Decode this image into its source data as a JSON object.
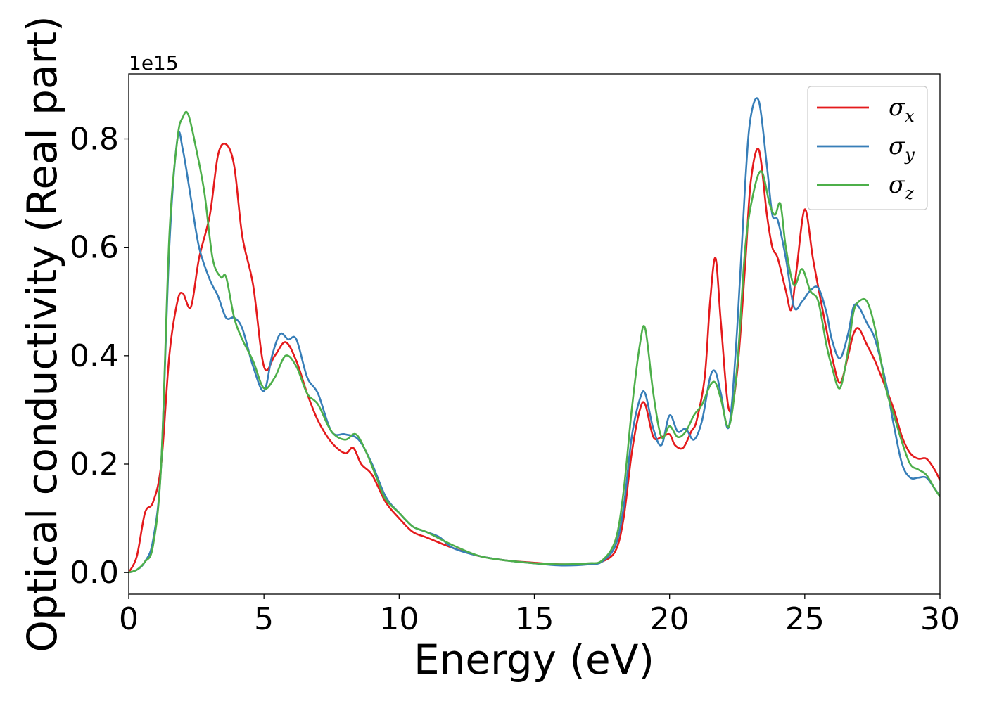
{
  "chart_data": {
    "type": "line",
    "title": "",
    "xlabel": "Energy (eV)",
    "ylabel": "Optical conductivity (Real part)",
    "y_offset_text": "1e15",
    "xlim": [
      0,
      30
    ],
    "ylim": [
      -0.04,
      0.92
    ],
    "xticks": [
      0,
      5,
      10,
      15,
      20,
      25,
      30
    ],
    "xtick_labels": [
      "0",
      "5",
      "10",
      "15",
      "20",
      "25",
      "30"
    ],
    "yticks": [
      0.0,
      0.2,
      0.4,
      0.6,
      0.8
    ],
    "ytick_labels": [
      "0.0",
      "0.2",
      "0.4",
      "0.6",
      "0.8"
    ],
    "grid": false,
    "legend_position": "top-right",
    "series": [
      {
        "name": "σx",
        "symbol": "σ",
        "subscript": "x",
        "color": "#e41a1c",
        "x": [
          0,
          0.3,
          0.6,
          0.9,
          1.2,
          1.5,
          1.8,
          2.0,
          2.3,
          2.6,
          3.0,
          3.3,
          3.6,
          3.9,
          4.2,
          4.6,
          5.0,
          5.4,
          5.8,
          6.2,
          6.6,
          7.0,
          7.5,
          8.0,
          8.3,
          8.6,
          9.0,
          9.5,
          10.0,
          10.5,
          11.0,
          12.0,
          13.0,
          14.0,
          15.0,
          16.0,
          17.0,
          17.5,
          18.0,
          18.3,
          18.6,
          18.9,
          19.1,
          19.4,
          19.7,
          20.0,
          20.2,
          20.5,
          20.8,
          21.0,
          21.3,
          21.5,
          21.7,
          21.9,
          22.2,
          22.5,
          22.8,
          23.0,
          23.3,
          23.6,
          23.8,
          24.0,
          24.3,
          24.5,
          24.7,
          25.0,
          25.3,
          25.6,
          26.0,
          26.3,
          26.6,
          26.8,
          27.0,
          27.3,
          27.6,
          28.0,
          28.3,
          28.6,
          28.9,
          29.2,
          29.5,
          29.8,
          30.0
        ],
        "y": [
          0.0,
          0.03,
          0.11,
          0.13,
          0.2,
          0.4,
          0.5,
          0.515,
          0.49,
          0.58,
          0.66,
          0.77,
          0.79,
          0.75,
          0.62,
          0.53,
          0.38,
          0.4,
          0.425,
          0.39,
          0.33,
          0.28,
          0.24,
          0.22,
          0.23,
          0.2,
          0.18,
          0.13,
          0.1,
          0.075,
          0.065,
          0.045,
          0.03,
          0.022,
          0.018,
          0.015,
          0.016,
          0.02,
          0.04,
          0.1,
          0.22,
          0.3,
          0.31,
          0.25,
          0.25,
          0.255,
          0.235,
          0.23,
          0.26,
          0.28,
          0.36,
          0.5,
          0.58,
          0.46,
          0.3,
          0.37,
          0.57,
          0.72,
          0.78,
          0.66,
          0.6,
          0.58,
          0.52,
          0.485,
          0.56,
          0.67,
          0.58,
          0.5,
          0.4,
          0.35,
          0.4,
          0.44,
          0.45,
          0.42,
          0.39,
          0.34,
          0.3,
          0.25,
          0.22,
          0.21,
          0.21,
          0.19,
          0.17
        ]
      },
      {
        "name": "σy",
        "symbol": "σ",
        "subscript": "y",
        "color": "#377eb8",
        "x": [
          0,
          0.3,
          0.6,
          0.9,
          1.2,
          1.5,
          1.8,
          2.0,
          2.3,
          2.6,
          3.0,
          3.3,
          3.6,
          3.9,
          4.2,
          4.6,
          5.0,
          5.3,
          5.6,
          5.9,
          6.2,
          6.6,
          7.0,
          7.5,
          8.0,
          8.5,
          9.0,
          9.5,
          10.0,
          10.5,
          11.0,
          11.5,
          12.0,
          13.0,
          14.0,
          15.0,
          16.0,
          17.0,
          17.5,
          18.0,
          18.3,
          18.6,
          18.9,
          19.1,
          19.4,
          19.7,
          20.0,
          20.3,
          20.6,
          20.9,
          21.2,
          21.5,
          21.7,
          21.9,
          22.2,
          22.5,
          22.8,
          23.0,
          23.3,
          23.6,
          23.8,
          24.0,
          24.3,
          24.6,
          24.9,
          25.2,
          25.5,
          25.8,
          26.0,
          26.3,
          26.6,
          26.8,
          27.0,
          27.3,
          27.6,
          28.0,
          28.3,
          28.6,
          28.9,
          29.2,
          29.5,
          29.8,
          30.0
        ],
        "y": [
          0.0,
          0.005,
          0.02,
          0.06,
          0.2,
          0.6,
          0.8,
          0.78,
          0.69,
          0.6,
          0.54,
          0.51,
          0.47,
          0.47,
          0.45,
          0.38,
          0.335,
          0.4,
          0.44,
          0.43,
          0.43,
          0.36,
          0.33,
          0.26,
          0.255,
          0.245,
          0.2,
          0.14,
          0.11,
          0.085,
          0.075,
          0.065,
          0.045,
          0.03,
          0.022,
          0.017,
          0.013,
          0.015,
          0.02,
          0.05,
          0.12,
          0.25,
          0.32,
          0.33,
          0.265,
          0.235,
          0.29,
          0.26,
          0.265,
          0.245,
          0.28,
          0.36,
          0.37,
          0.33,
          0.27,
          0.45,
          0.72,
          0.84,
          0.87,
          0.75,
          0.66,
          0.65,
          0.58,
          0.49,
          0.5,
          0.52,
          0.525,
          0.48,
          0.43,
          0.395,
          0.44,
          0.49,
          0.49,
          0.46,
          0.43,
          0.35,
          0.27,
          0.2,
          0.175,
          0.175,
          0.175,
          0.155,
          0.14
        ]
      },
      {
        "name": "σz",
        "symbol": "σ",
        "subscript": "z",
        "color": "#4daf4a",
        "x": [
          0,
          0.3,
          0.6,
          0.9,
          1.2,
          1.5,
          1.8,
          2.0,
          2.2,
          2.5,
          2.8,
          3.1,
          3.4,
          3.6,
          3.9,
          4.2,
          4.6,
          5.0,
          5.4,
          5.8,
          6.2,
          6.6,
          7.0,
          7.5,
          8.0,
          8.4,
          8.8,
          9.2,
          9.5,
          10.0,
          10.5,
          11.0,
          12.0,
          13.0,
          14.0,
          15.0,
          16.0,
          17.0,
          17.5,
          18.0,
          18.3,
          18.6,
          18.9,
          19.1,
          19.4,
          19.7,
          20.0,
          20.3,
          20.6,
          20.9,
          21.2,
          21.5,
          21.7,
          21.9,
          22.2,
          22.5,
          22.8,
          23.1,
          23.4,
          23.7,
          23.9,
          24.1,
          24.3,
          24.6,
          24.9,
          25.2,
          25.5,
          25.8,
          26.0,
          26.3,
          26.6,
          26.8,
          27.0,
          27.3,
          27.6,
          28.0,
          28.3,
          28.6,
          28.9,
          29.2,
          29.5,
          29.8,
          30.0
        ],
        "y": [
          0.0,
          0.005,
          0.02,
          0.05,
          0.2,
          0.62,
          0.8,
          0.84,
          0.845,
          0.78,
          0.7,
          0.58,
          0.545,
          0.545,
          0.47,
          0.43,
          0.39,
          0.34,
          0.36,
          0.4,
          0.38,
          0.33,
          0.31,
          0.26,
          0.245,
          0.255,
          0.22,
          0.17,
          0.135,
          0.11,
          0.085,
          0.075,
          0.05,
          0.03,
          0.022,
          0.017,
          0.015,
          0.017,
          0.022,
          0.06,
          0.15,
          0.3,
          0.42,
          0.45,
          0.33,
          0.25,
          0.27,
          0.25,
          0.26,
          0.29,
          0.31,
          0.345,
          0.35,
          0.32,
          0.27,
          0.38,
          0.6,
          0.7,
          0.74,
          0.68,
          0.66,
          0.68,
          0.6,
          0.53,
          0.56,
          0.52,
          0.5,
          0.42,
          0.38,
          0.34,
          0.41,
          0.48,
          0.5,
          0.5,
          0.45,
          0.34,
          0.29,
          0.24,
          0.2,
          0.19,
          0.18,
          0.155,
          0.14
        ]
      }
    ]
  }
}
